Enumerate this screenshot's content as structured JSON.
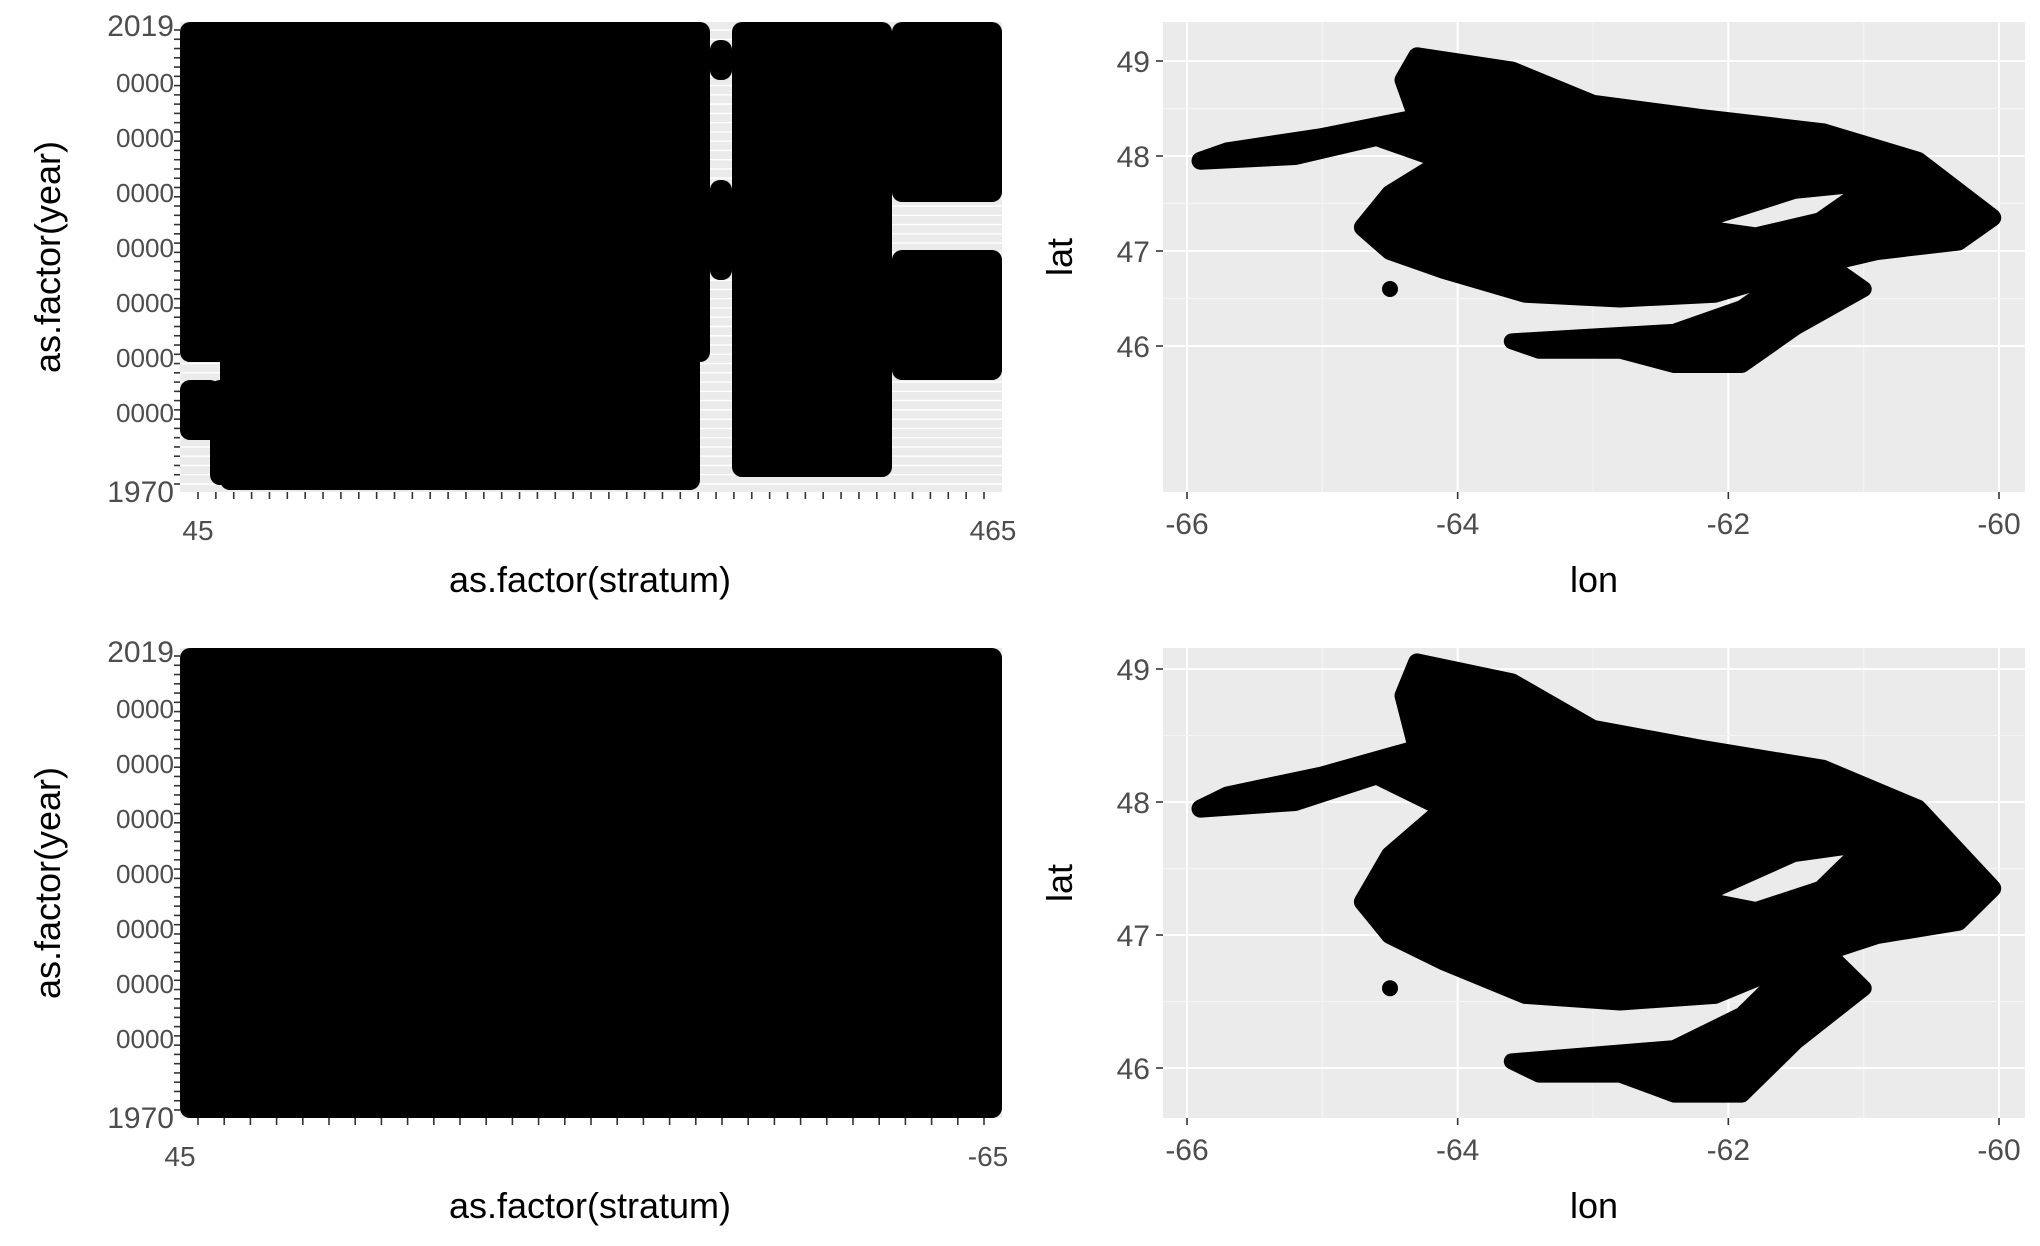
{
  "colors": {
    "panel_bg": "#ebebeb",
    "grid_major": "#ffffff",
    "grid_minor": "#f4f4f4",
    "point": "#000000",
    "tick_text": "#4d4d4d"
  },
  "chart_data": [
    {
      "type": "scatter",
      "xlabel": "as.factor(stratum)",
      "ylabel": "as.factor(year)",
      "y_levels": [
        "1970",
        "2019"
      ],
      "y_tick_labels_visible": [
        "1970",
        "2019"
      ],
      "x_tick_labels_visible": [
        "45",
        "465"
      ],
      "x_level_count": 45,
      "y_level_count": 50,
      "grid": true,
      "legend": "none"
    },
    {
      "type": "scatter",
      "xlabel": "lon",
      "ylabel": "lat",
      "xticks": [
        -66,
        -64,
        -62,
        -60
      ],
      "yticks": [
        46,
        47,
        48,
        49
      ],
      "xlim": [
        -66.1,
        -59.8
      ],
      "ylim": [
        45.55,
        49.3
      ],
      "grid": true,
      "legend": "none"
    },
    {
      "type": "scatter",
      "xlabel": "as.factor(stratum)",
      "ylabel": "as.factor(year)",
      "y_tick_labels_visible": [
        "1970",
        "2019"
      ],
      "x_tick_labels_visible": [
        "45",
        "-65"
      ],
      "x_level_count": 31,
      "y_level_count": 50,
      "grid": true,
      "legend": "none"
    },
    {
      "type": "scatter",
      "xlabel": "lon",
      "ylabel": "lat",
      "xticks": [
        -66,
        -64,
        -62,
        -60
      ],
      "yticks": [
        46,
        47,
        48,
        49
      ],
      "xlim": [
        -66.1,
        -59.8
      ],
      "ylim": [
        45.55,
        49.3
      ],
      "grid": true,
      "legend": "none"
    }
  ]
}
